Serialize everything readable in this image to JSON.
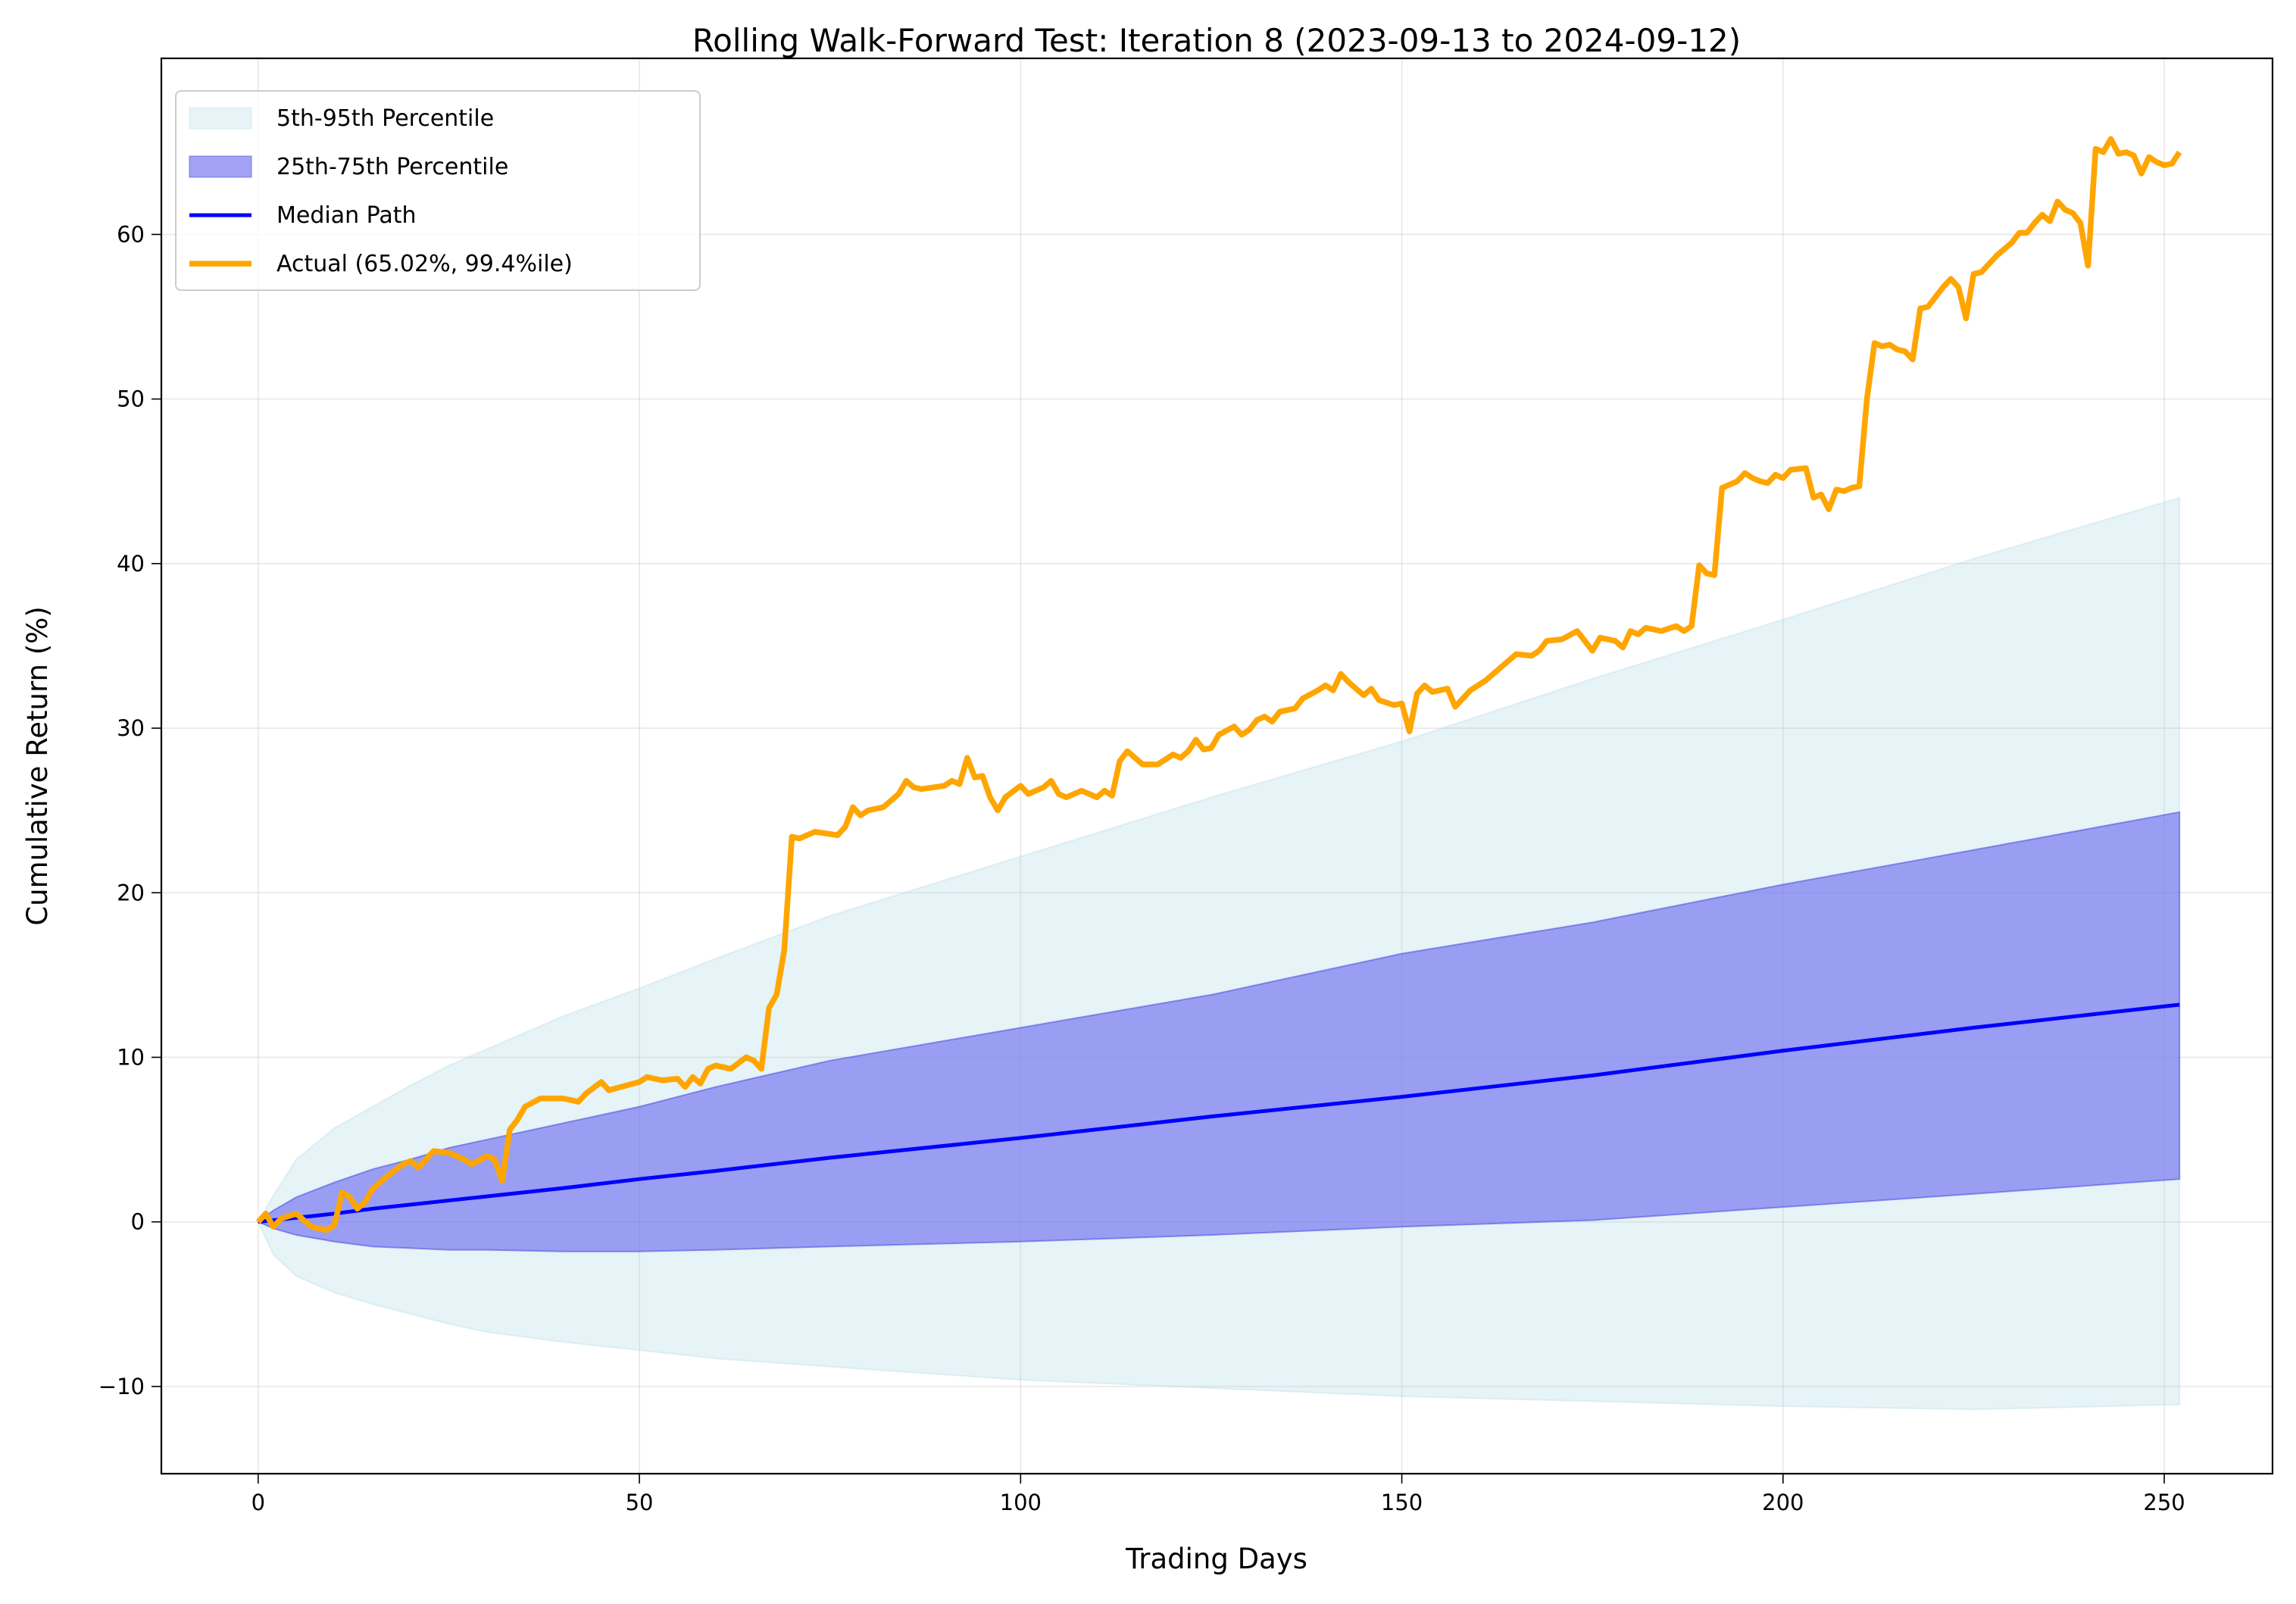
{
  "chart_data": {
    "type": "line",
    "title": "Rolling Walk-Forward Test: Iteration 8 (2023-09-13 to 2024-09-12)",
    "xlabel": "Trading Days",
    "ylabel": "Cumulative Return (%)",
    "xlim": [
      -12.7,
      264.2
    ],
    "ylim": [
      -15.3,
      70.7
    ],
    "xticks": [
      0,
      50,
      100,
      150,
      200,
      250
    ],
    "yticks": [
      -10,
      0,
      10,
      20,
      30,
      40,
      50,
      60
    ],
    "grid": true,
    "legend_position": "top-left",
    "colors": {
      "band_outer": "#add8e6",
      "band_inner": "#6666ee",
      "median": "#0000ff",
      "actual": "#ffa500"
    },
    "bands": {
      "x": [
        0,
        2,
        5,
        10,
        15,
        20,
        25,
        30,
        40,
        50,
        60,
        75,
        100,
        125,
        150,
        175,
        200,
        225,
        252
      ],
      "p5": [
        0,
        -2.0,
        -3.3,
        -4.3,
        -5.0,
        -5.6,
        -6.2,
        -6.7,
        -7.3,
        -7.8,
        -8.3,
        -8.8,
        -9.6,
        -10.1,
        -10.6,
        -10.9,
        -11.2,
        -11.4,
        -11.1
      ],
      "p25": [
        0,
        -0.4,
        -0.8,
        -1.2,
        -1.5,
        -1.6,
        -1.7,
        -1.7,
        -1.8,
        -1.8,
        -1.7,
        -1.5,
        -1.2,
        -0.8,
        -0.3,
        0.1,
        0.9,
        1.7,
        2.6
      ],
      "p75": [
        0,
        0.7,
        1.5,
        2.4,
        3.2,
        3.8,
        4.5,
        5.0,
        6.0,
        7.0,
        8.2,
        9.8,
        11.8,
        13.8,
        16.3,
        18.2,
        20.5,
        22.6,
        24.9
      ],
      "p95": [
        0,
        1.6,
        3.8,
        5.7,
        7.0,
        8.3,
        9.5,
        10.5,
        12.5,
        14.2,
        16.0,
        18.6,
        22.2,
        25.8,
        29.2,
        33.0,
        36.6,
        40.3,
        44.0
      ],
      "median": [
        0,
        0.1,
        0.25,
        0.5,
        0.8,
        1.05,
        1.3,
        1.55,
        2.05,
        2.6,
        3.1,
        3.9,
        5.1,
        6.4,
        7.6,
        8.9,
        10.4,
        11.8,
        13.2
      ]
    },
    "series": [
      {
        "name": "Actual (65.02%, 99.4%ile)",
        "x": [
          0,
          1,
          2,
          3,
          5,
          7,
          9,
          10,
          11,
          12,
          13,
          14,
          15,
          17,
          19,
          20,
          21,
          23,
          25,
          27,
          28,
          30,
          31,
          32,
          33,
          34,
          35,
          37,
          40,
          42,
          43,
          45,
          46,
          50,
          51,
          53,
          55,
          56,
          57,
          58,
          59,
          60,
          62,
          64,
          65,
          66,
          67,
          68,
          69,
          70,
          71,
          73,
          76,
          77,
          78,
          79,
          80,
          82,
          84,
          85,
          86,
          87,
          90,
          91,
          92,
          93,
          94,
          95,
          96,
          97,
          98,
          100,
          101,
          103,
          104,
          105,
          106,
          108,
          110,
          111,
          112,
          113,
          114,
          116,
          118,
          120,
          121,
          122,
          123,
          124,
          125,
          126,
          128,
          129,
          130,
          131,
          132,
          133,
          134,
          136,
          137,
          139,
          140,
          141,
          142,
          143,
          145,
          146,
          147,
          149,
          150,
          151,
          152,
          153,
          154,
          156,
          157,
          159,
          161,
          163,
          165,
          167,
          168,
          169,
          171,
          173,
          174,
          175,
          176,
          178,
          179,
          180,
          181,
          182,
          184,
          186,
          187,
          188,
          189,
          190,
          191,
          192,
          193,
          194,
          195,
          196,
          197,
          198,
          199,
          200,
          201,
          203,
          204,
          205,
          206,
          207,
          208,
          209,
          210,
          211,
          212,
          213,
          214,
          215,
          216,
          217,
          218,
          219,
          220,
          221,
          222,
          223,
          224,
          225,
          226,
          227,
          228,
          229,
          230,
          231,
          232,
          233,
          234,
          235,
          236,
          237,
          238,
          239,
          240,
          241,
          242,
          243,
          244,
          245,
          246,
          247,
          248,
          249,
          250,
          251,
          252
        ],
        "y": [
          0,
          0.5,
          -0.3,
          0.2,
          0.5,
          -0.3,
          -0.5,
          -0.2,
          1.8,
          1.5,
          0.8,
          1.2,
          2.0,
          2.8,
          3.5,
          3.7,
          3.3,
          4.3,
          4.2,
          3.8,
          3.5,
          4.0,
          3.8,
          2.5,
          5.6,
          6.2,
          7.0,
          7.5,
          7.5,
          7.3,
          7.8,
          8.5,
          8.0,
          8.5,
          8.8,
          8.6,
          8.7,
          8.2,
          8.8,
          8.4,
          9.3,
          9.5,
          9.3,
          10.0,
          9.8,
          9.3,
          13.0,
          13.8,
          16.5,
          23.4,
          23.3,
          23.7,
          23.5,
          24.0,
          25.2,
          24.7,
          25.0,
          25.2,
          26.0,
          26.8,
          26.4,
          26.3,
          26.5,
          26.8,
          26.6,
          28.2,
          27.0,
          27.1,
          25.8,
          25.0,
          25.8,
          26.5,
          26.0,
          26.4,
          26.8,
          26.0,
          25.8,
          26.2,
          25.8,
          26.2,
          25.9,
          28.0,
          28.6,
          27.8,
          27.8,
          28.4,
          28.2,
          28.6,
          29.3,
          28.7,
          28.8,
          29.6,
          30.1,
          29.6,
          29.9,
          30.5,
          30.7,
          30.4,
          31.0,
          31.2,
          31.8,
          32.3,
          32.6,
          32.3,
          33.3,
          32.8,
          32.0,
          32.4,
          31.7,
          31.4,
          31.5,
          29.8,
          32.1,
          32.6,
          32.2,
          32.4,
          31.3,
          32.3,
          32.9,
          33.7,
          34.5,
          34.4,
          34.7,
          35.3,
          35.4,
          35.9,
          35.3,
          34.7,
          35.5,
          35.3,
          34.9,
          35.9,
          35.7,
          36.1,
          35.9,
          36.2,
          35.9,
          36.2,
          39.9,
          39.4,
          39.3,
          44.6,
          44.8,
          45.0,
          45.5,
          45.2,
          45.0,
          44.9,
          45.4,
          45.2,
          45.7,
          45.8,
          44.0,
          44.2,
          43.3,
          44.5,
          44.4,
          44.6,
          44.7,
          50.0,
          53.4,
          53.2,
          53.3,
          53.0,
          52.9,
          52.4,
          55.5,
          55.6,
          56.2,
          56.8,
          57.3,
          56.8,
          54.9,
          57.6,
          57.7,
          58.2,
          58.7,
          59.1,
          59.5,
          60.1,
          60.1,
          60.7,
          61.2,
          60.8,
          62.0,
          61.5,
          61.3,
          60.7,
          58.1,
          65.2,
          65.0,
          65.8,
          64.9,
          65.0,
          64.8,
          63.7,
          64.7,
          64.4,
          64.2,
          64.3,
          65.0
        ]
      }
    ],
    "legend": [
      {
        "label": "5th-95th Percentile",
        "kind": "band_outer"
      },
      {
        "label": "25th-75th Percentile",
        "kind": "band_inner"
      },
      {
        "label": "Median Path",
        "kind": "median"
      },
      {
        "label": "Actual (65.02%, 99.4%ile)",
        "kind": "actual"
      }
    ]
  }
}
